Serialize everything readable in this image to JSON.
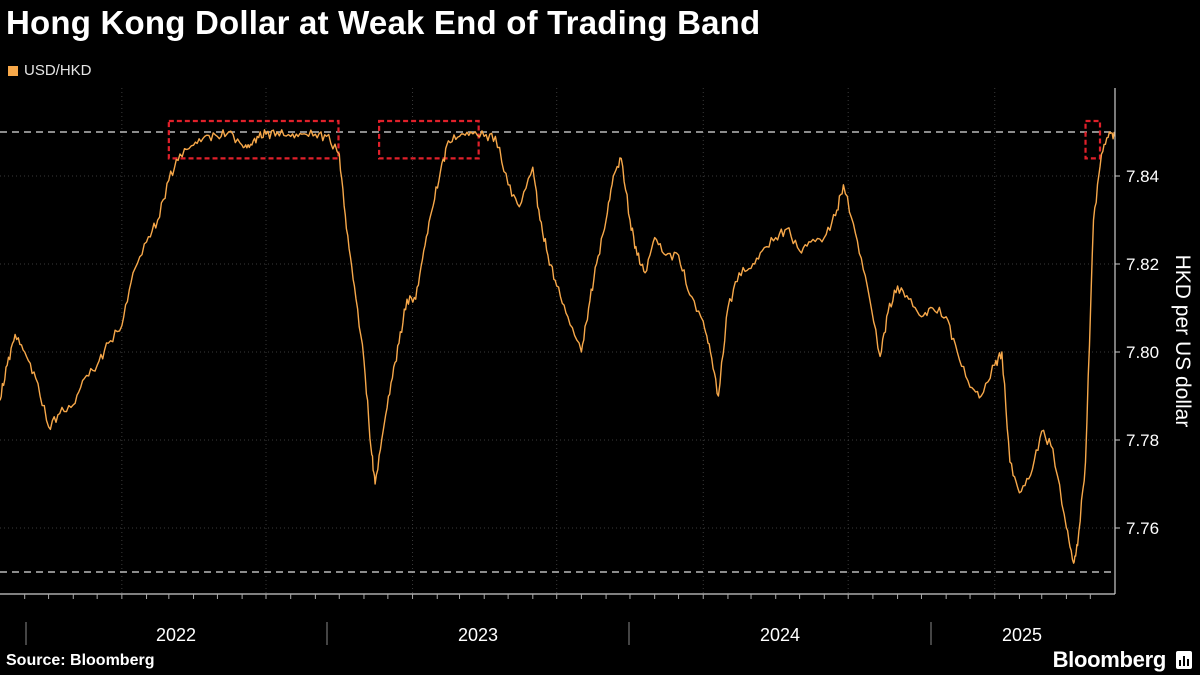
{
  "title": "Hong Kong Dollar at Weak End of Trading Band",
  "legend": {
    "label": "USD/HKD",
    "color": "#f7a84a"
  },
  "source": "Source: Bloomberg",
  "brand": "Bloomberg",
  "chart_data": {
    "type": "line",
    "title": "Hong Kong Dollar at Weak End of Trading Band",
    "ylabel": "HKD per US dollar",
    "xlabel": "",
    "ylim": [
      7.745,
      7.86
    ],
    "yticks": [
      "7.76",
      "7.78",
      "7.80",
      "7.82",
      "7.84"
    ],
    "ytick_values": [
      7.76,
      7.78,
      7.8,
      7.82,
      7.84
    ],
    "xtick_labels": [
      "2022",
      "2023",
      "2024",
      "2025"
    ],
    "xlim": [
      "2021-08-01",
      "2025-06-01"
    ],
    "grid": true,
    "reference_lines": [
      7.85,
      7.75
    ],
    "highlight_boxes": [
      {
        "start": "2022-03-01",
        "end": "2022-09-30",
        "ymin": 7.844,
        "ymax": 7.8525
      },
      {
        "start": "2022-11-20",
        "end": "2023-03-25",
        "ymin": 7.844,
        "ymax": 7.8525
      },
      {
        "start": "2025-04-25",
        "end": "2025-06-01",
        "ymin": 7.844,
        "ymax": 7.8525
      }
    ],
    "series": [
      {
        "name": "USD/HKD",
        "color": "#f7a84a",
        "points": [
          [
            "2021-08-01",
            7.789
          ],
          [
            "2021-08-10",
            7.797
          ],
          [
            "2021-08-20",
            7.804
          ],
          [
            "2021-09-01",
            7.8
          ],
          [
            "2021-09-15",
            7.794
          ],
          [
            "2021-10-01",
            7.783
          ],
          [
            "2021-10-15",
            7.786
          ],
          [
            "2021-11-01",
            7.788
          ],
          [
            "2021-11-15",
            7.794
          ],
          [
            "2021-12-01",
            7.797
          ],
          [
            "2021-12-15",
            7.802
          ],
          [
            "2022-01-01",
            7.806
          ],
          [
            "2022-01-15",
            7.818
          ],
          [
            "2022-02-01",
            7.825
          ],
          [
            "2022-02-15",
            7.83
          ],
          [
            "2022-03-01",
            7.839
          ],
          [
            "2022-03-15",
            7.845
          ],
          [
            "2022-04-01",
            7.847
          ],
          [
            "2022-04-15",
            7.849
          ],
          [
            "2022-05-01",
            7.849
          ],
          [
            "2022-05-15",
            7.85
          ],
          [
            "2022-06-01",
            7.847
          ],
          [
            "2022-06-10",
            7.8465
          ],
          [
            "2022-06-20",
            7.849
          ],
          [
            "2022-07-01",
            7.8495
          ],
          [
            "2022-07-15",
            7.85
          ],
          [
            "2022-08-01",
            7.849
          ],
          [
            "2022-08-15",
            7.8495
          ],
          [
            "2022-09-01",
            7.8495
          ],
          [
            "2022-09-15",
            7.849
          ],
          [
            "2022-10-01",
            7.845
          ],
          [
            "2022-10-10",
            7.828
          ],
          [
            "2022-10-20",
            7.815
          ],
          [
            "2022-11-01",
            7.798
          ],
          [
            "2022-11-10",
            7.778
          ],
          [
            "2022-11-15",
            7.77
          ],
          [
            "2022-11-25",
            7.782
          ],
          [
            "2022-12-05",
            7.793
          ],
          [
            "2022-12-15",
            7.802
          ],
          [
            "2022-12-25",
            7.812
          ],
          [
            "2023-01-05",
            7.812
          ],
          [
            "2023-01-15",
            7.823
          ],
          [
            "2023-01-25",
            7.832
          ],
          [
            "2023-02-05",
            7.841
          ],
          [
            "2023-02-15",
            7.848
          ],
          [
            "2023-03-01",
            7.849
          ],
          [
            "2023-03-15",
            7.85
          ],
          [
            "2023-04-01",
            7.849
          ],
          [
            "2023-04-15",
            7.849
          ],
          [
            "2023-05-01",
            7.838
          ],
          [
            "2023-05-15",
            7.833
          ],
          [
            "2023-06-01",
            7.842
          ],
          [
            "2023-06-10",
            7.83
          ],
          [
            "2023-06-20",
            7.822
          ],
          [
            "2023-07-01",
            7.815
          ],
          [
            "2023-07-15",
            7.808
          ],
          [
            "2023-08-01",
            7.8
          ],
          [
            "2023-08-10",
            7.81
          ],
          [
            "2023-08-20",
            7.82
          ],
          [
            "2023-09-01",
            7.83
          ],
          [
            "2023-09-10",
            7.84
          ],
          [
            "2023-09-20",
            7.844
          ],
          [
            "2023-10-01",
            7.83
          ],
          [
            "2023-10-10",
            7.822
          ],
          [
            "2023-10-20",
            7.818
          ],
          [
            "2023-11-01",
            7.826
          ],
          [
            "2023-11-15",
            7.822
          ],
          [
            "2023-12-01",
            7.822
          ],
          [
            "2023-12-15",
            7.813
          ],
          [
            "2024-01-01",
            7.807
          ],
          [
            "2024-01-10",
            7.8
          ],
          [
            "2024-01-20",
            7.79
          ],
          [
            "2024-02-01",
            7.81
          ],
          [
            "2024-02-15",
            7.818
          ],
          [
            "2024-03-01",
            7.819
          ],
          [
            "2024-03-15",
            7.823
          ],
          [
            "2024-04-01",
            7.826
          ],
          [
            "2024-04-15",
            7.828
          ],
          [
            "2024-05-01",
            7.823
          ],
          [
            "2024-05-15",
            7.825
          ],
          [
            "2024-06-01",
            7.826
          ],
          [
            "2024-06-15",
            7.831
          ],
          [
            "2024-06-25",
            7.838
          ],
          [
            "2024-07-10",
            7.827
          ],
          [
            "2024-07-25",
            7.815
          ],
          [
            "2024-08-10",
            7.799
          ],
          [
            "2024-08-20",
            7.809
          ],
          [
            "2024-09-01",
            7.815
          ],
          [
            "2024-09-15",
            7.812
          ],
          [
            "2024-10-01",
            7.808
          ],
          [
            "2024-10-15",
            7.81
          ],
          [
            "2024-11-01",
            7.808
          ],
          [
            "2024-11-15",
            7.8
          ],
          [
            "2024-12-01",
            7.792
          ],
          [
            "2024-12-15",
            7.79
          ],
          [
            "2025-01-01",
            7.797
          ],
          [
            "2025-01-10",
            7.8
          ],
          [
            "2025-01-20",
            7.775
          ],
          [
            "2025-02-01",
            7.768
          ],
          [
            "2025-02-15",
            7.772
          ],
          [
            "2025-03-01",
            7.782
          ],
          [
            "2025-03-15",
            7.778
          ],
          [
            "2025-04-01",
            7.76
          ],
          [
            "2025-04-10",
            7.752
          ],
          [
            "2025-04-15",
            7.756
          ],
          [
            "2025-04-25",
            7.775
          ],
          [
            "2025-05-05",
            7.83
          ],
          [
            "2025-05-15",
            7.845
          ],
          [
            "2025-05-25",
            7.85
          ],
          [
            "2025-06-01",
            7.849
          ]
        ]
      }
    ]
  }
}
